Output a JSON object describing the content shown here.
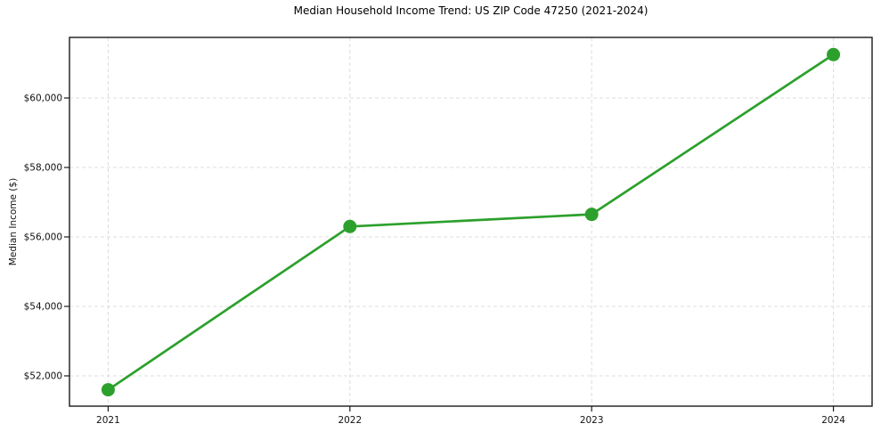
{
  "chart_data": {
    "type": "line",
    "title": "Median Household Income Trend: US ZIP Code 47250 (2021-2024)",
    "xlabel": "",
    "ylabel": "Median Income ($)",
    "x": [
      2021,
      2022,
      2023,
      2024
    ],
    "x_tick_labels": [
      "2021",
      "2022",
      "2023",
      "2024"
    ],
    "y_ticks": [
      52000,
      54000,
      56000,
      58000,
      60000
    ],
    "y_tick_labels": [
      "$52,000",
      "$54,000",
      "$56,000",
      "$58,000",
      "$60,000"
    ],
    "series": [
      {
        "name": "Median Household Income",
        "values": [
          51600,
          56300,
          56650,
          61250
        ]
      }
    ],
    "xlim": [
      2020.84,
      2024.16
    ],
    "ylim": [
      51128,
      61744
    ],
    "grid": true,
    "grid_style": "dashed",
    "legend": "none",
    "colors": {
      "line": "#2ca02c",
      "marker": "#2ca02c",
      "grid": "#dcdcdc",
      "frame": "#1a1a1a",
      "text": "#111111",
      "background": "#ffffff"
    }
  }
}
